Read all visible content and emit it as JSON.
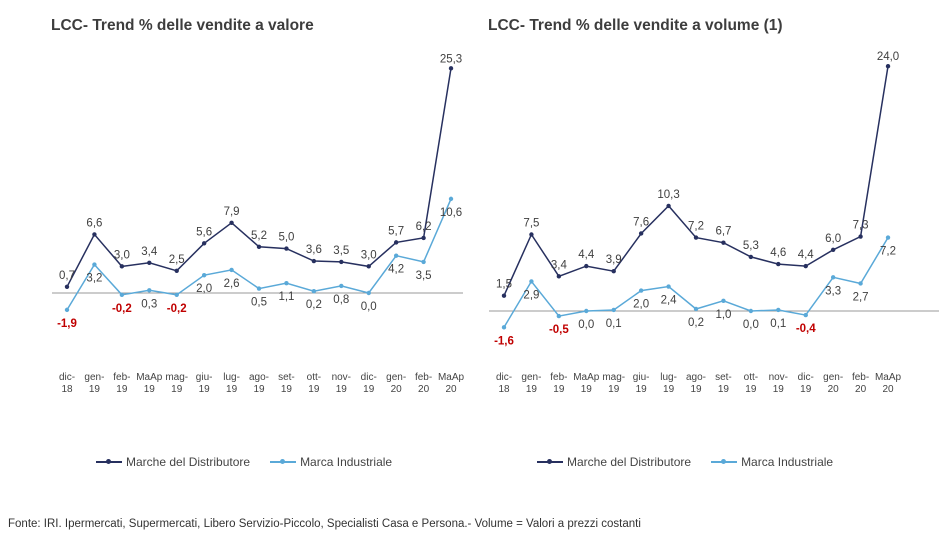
{
  "colors": {
    "pl": "#27305f",
    "industrial": "#5aa9d8",
    "negative": "#c00000",
    "axis": "#7f7f7f",
    "label": "#404040"
  },
  "legend": {
    "pl": "Marche del Distributore",
    "industrial": "Marca Industriale"
  },
  "footnote": "Fonte: IRI. Ipermercati, Supermercati, Libero Servizio-Piccolo, Specialisti Casa e Persona.- Volume = Valori a prezzi costanti",
  "chart_data": [
    {
      "type": "line",
      "title": "LCC- Trend % delle vendite a valore",
      "categories": [
        [
          "dic-",
          "18"
        ],
        [
          "gen-",
          "19"
        ],
        [
          "feb-",
          "19"
        ],
        [
          "MaAp",
          "19"
        ],
        [
          "mag-",
          "19"
        ],
        [
          "giu-",
          "19"
        ],
        [
          "lug-",
          "19"
        ],
        [
          "ago-",
          "19"
        ],
        [
          "set-",
          "19"
        ],
        [
          "ott-",
          "19"
        ],
        [
          "nov-",
          "19"
        ],
        [
          "dic-",
          "19"
        ],
        [
          "gen-",
          "20"
        ],
        [
          "feb-",
          "20"
        ],
        [
          "MaAp",
          "20"
        ]
      ],
      "legend_position": "bottom",
      "grid": false,
      "series": [
        {
          "name": "Marche del Distributore",
          "values": [
            0.7,
            6.6,
            3.0,
            3.4,
            2.5,
            5.6,
            7.9,
            5.2,
            5.0,
            3.6,
            3.5,
            3.0,
            5.7,
            6.2,
            25.3
          ],
          "labels": [
            "0,7",
            "6,6",
            "3,0",
            "3,4",
            "2,5",
            "5,6",
            "7,9",
            "5,2",
            "5,0",
            "3,6",
            "3,5",
            "3,0",
            "5,7",
            "6,2",
            "25,3"
          ]
        },
        {
          "name": "Marca Industriale",
          "values": [
            -1.9,
            3.2,
            -0.2,
            0.3,
            -0.2,
            2.0,
            2.6,
            0.5,
            1.1,
            0.2,
            0.8,
            0.0,
            4.2,
            3.5,
            10.6
          ],
          "labels": [
            "-1,9",
            "3,2",
            "-0,2",
            "0,3",
            "-0,2",
            "2,0",
            "2,6",
            "0,5",
            "1,1",
            "0,2",
            "0,8",
            "0,0",
            "4,2",
            "3,5",
            "10,6"
          ]
        }
      ]
    },
    {
      "type": "line",
      "title": "LCC- Trend % delle vendite a volume (1)",
      "categories": [
        [
          "dic-",
          "18"
        ],
        [
          "gen-",
          "19"
        ],
        [
          "feb-",
          "19"
        ],
        [
          "MaAp",
          "19"
        ],
        [
          "mag-",
          "19"
        ],
        [
          "giu-",
          "19"
        ],
        [
          "lug-",
          "19"
        ],
        [
          "ago-",
          "19"
        ],
        [
          "set-",
          "19"
        ],
        [
          "ott-",
          "19"
        ],
        [
          "nov-",
          "19"
        ],
        [
          "dic-",
          "19"
        ],
        [
          "gen-",
          "20"
        ],
        [
          "feb-",
          "20"
        ],
        [
          "MaAp",
          "20"
        ]
      ],
      "legend_position": "bottom",
      "grid": false,
      "series": [
        {
          "name": "Marche del Distributore",
          "values": [
            1.5,
            7.5,
            3.4,
            4.4,
            3.9,
            7.6,
            10.3,
            7.2,
            6.7,
            5.3,
            4.6,
            4.4,
            6.0,
            7.3,
            24.0
          ],
          "labels": [
            "1,5",
            "7,5",
            "3,4",
            "4,4",
            "3,9",
            "7,6",
            "10,3",
            "7,2",
            "6,7",
            "5,3",
            "4,6",
            "4,4",
            "6,0",
            "7,3",
            "24,0"
          ]
        },
        {
          "name": "Marca Industriale",
          "values": [
            -1.6,
            2.9,
            -0.5,
            0.0,
            0.1,
            2.0,
            2.4,
            0.2,
            1.0,
            0.0,
            0.1,
            -0.4,
            3.3,
            2.7,
            7.2
          ],
          "labels": [
            "-1,6",
            "2,9",
            "-0,5",
            "0,0",
            "0,1",
            "2,0",
            "2,4",
            "0,2",
            "1,0",
            "0,0",
            "0,1",
            "-0,4",
            "3,3",
            "2,7",
            "7,2"
          ]
        }
      ]
    }
  ]
}
